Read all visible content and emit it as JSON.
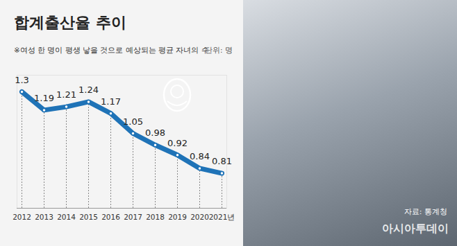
{
  "chart_data": {
    "type": "line",
    "title": "합계출산율 추이",
    "subtitle": "※여성 한 명이 평생 낳을 것으로 예상되는 평균 자녀의 수",
    "unit": "단위: 명",
    "source": "자료: 통계청",
    "watermark": "아시아투데이",
    "categories": [
      "2012",
      "2013",
      "2014",
      "2015",
      "2016",
      "2017",
      "2018",
      "2019",
      "2020",
      "2021년"
    ],
    "values": [
      1.3,
      1.19,
      1.21,
      1.24,
      1.17,
      1.05,
      0.98,
      0.92,
      0.84,
      0.81
    ],
    "color": "#1f73b7",
    "ylim": [
      0.6,
      1.4
    ],
    "yticks": [],
    "data_labels": true,
    "tick_labels": "x",
    "grid": false,
    "marker": "circle"
  }
}
